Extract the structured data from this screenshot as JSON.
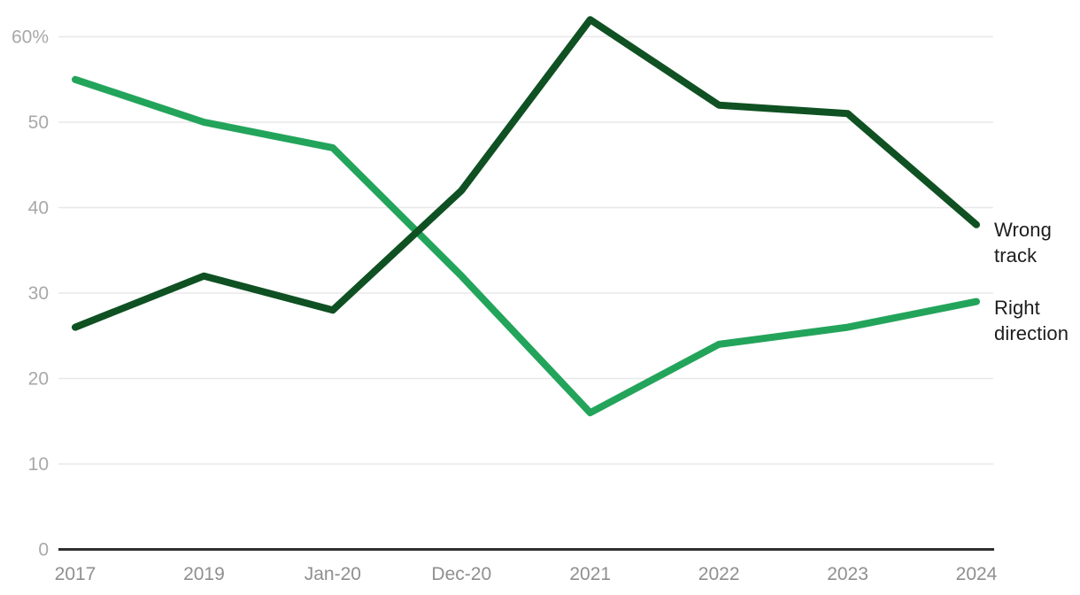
{
  "chart_data": {
    "type": "line",
    "title": "",
    "xlabel": "",
    "ylabel": "",
    "categories": [
      "2017",
      "2019",
      "Jan-20",
      "Dec-20",
      "2021",
      "2022",
      "2023",
      "2024"
    ],
    "series": [
      {
        "name": "Wrong track",
        "color": "#0f5122",
        "values": [
          26,
          32,
          28,
          42,
          62,
          52,
          51,
          38
        ]
      },
      {
        "name": "Right direction",
        "color": "#23a45b",
        "values": [
          55,
          50,
          47,
          32,
          16,
          24,
          26,
          29
        ]
      }
    ],
    "yticks": [
      {
        "value": 60,
        "label": "60%"
      },
      {
        "value": 50,
        "label": "50"
      },
      {
        "value": 40,
        "label": "40"
      },
      {
        "value": 30,
        "label": "30"
      },
      {
        "value": 20,
        "label": "20"
      },
      {
        "value": 10,
        "label": "10"
      },
      {
        "value": 0,
        "label": "0"
      }
    ],
    "ylim": [
      0,
      60
    ],
    "grid": true,
    "legend_position": "right-of-line-ends",
    "colors": {
      "background": "#ffffff",
      "grid": "#e8e8e8",
      "axis": "#2f2f2f",
      "ytick_text": "#a8a8a8",
      "xtick_text": "#8f8f8f",
      "series_label_text": "#1d1d1d"
    }
  }
}
